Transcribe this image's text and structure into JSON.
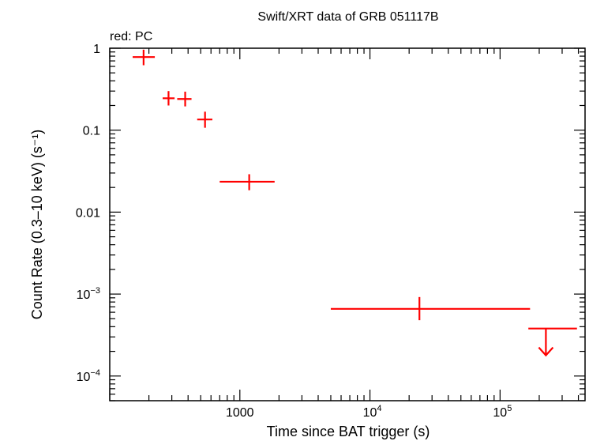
{
  "chart_data": {
    "type": "scatter",
    "title": "Swift/XRT data of GRB 051117B",
    "annotation": "red: PC",
    "xlabel": "Time since BAT trigger (s)",
    "ylabel": "Count Rate (0.3–10 keV) (s⁻¹)",
    "xscale": "log",
    "yscale": "log",
    "xlim": [
      100,
      450000
    ],
    "ylim": [
      5e-05,
      1
    ],
    "x_ticks": [
      {
        "value": 1000,
        "label": "1000",
        "exp": ""
      },
      {
        "value": 10000,
        "label": "10",
        "exp": "4"
      },
      {
        "value": 100000,
        "label": "10",
        "exp": "5"
      }
    ],
    "y_ticks": [
      {
        "value": 1,
        "label": "1",
        "exp": ""
      },
      {
        "value": 0.1,
        "label": "0.1",
        "exp": ""
      },
      {
        "value": 0.01,
        "label": "0.01",
        "exp": ""
      },
      {
        "value": 0.001,
        "label": "10",
        "exp": "−3"
      },
      {
        "value": 0.0001,
        "label": "10",
        "exp": "−4"
      }
    ],
    "series": [
      {
        "color": "#ff0000",
        "points": [
          {
            "x": 182,
            "xlo": 150,
            "xhi": 222,
            "y": 0.78,
            "ylo": 0.62,
            "yhi": 0.96
          },
          {
            "x": 283,
            "xlo": 255,
            "xhi": 315,
            "y": 0.245,
            "ylo": 0.2,
            "yhi": 0.3
          },
          {
            "x": 380,
            "xlo": 330,
            "xhi": 425,
            "y": 0.24,
            "ylo": 0.195,
            "yhi": 0.295
          },
          {
            "x": 540,
            "xlo": 470,
            "xhi": 615,
            "y": 0.135,
            "ylo": 0.107,
            "yhi": 0.168
          },
          {
            "x": 1180,
            "xlo": 700,
            "xhi": 1850,
            "y": 0.0235,
            "ylo": 0.0185,
            "yhi": 0.029
          },
          {
            "x": 24000,
            "xlo": 5000,
            "xhi": 170000,
            "y": 0.00066,
            "ylo": 0.00048,
            "yhi": 0.00092
          }
        ],
        "upper_limits": [
          {
            "x": 225000,
            "xlo": 165000,
            "xhi": 390000,
            "y": 0.00038
          }
        ]
      }
    ]
  }
}
